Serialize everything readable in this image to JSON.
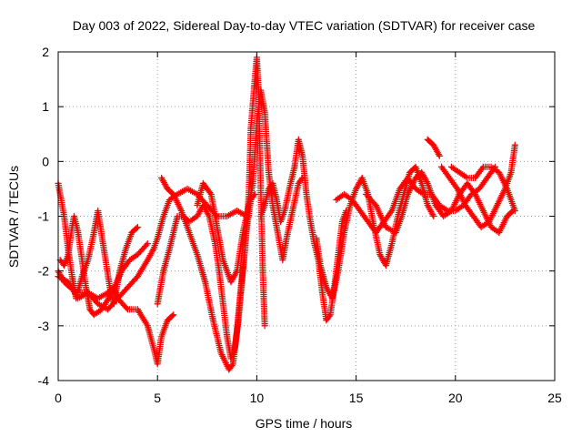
{
  "chart_data": {
    "type": "scatter",
    "title": "Day 003 of 2022, Sidereal Day-to-day VTEC variation (SDTVAR) for receiver case",
    "xlabel": "GPS time / hours",
    "ylabel": "SDTVAR / TECUs",
    "xlim": [
      0,
      25
    ],
    "ylim": [
      -4,
      2
    ],
    "xticks": [
      0,
      5,
      10,
      15,
      20,
      25
    ],
    "yticks": [
      -4,
      -3,
      -2,
      -1,
      0,
      1,
      2
    ],
    "grid": true,
    "marker": "plus",
    "color": "#ff0000",
    "series": [
      {
        "points": [
          [
            0.0,
            -0.4
          ],
          [
            0.3,
            -1.0
          ],
          [
            0.5,
            -1.6
          ],
          [
            0.7,
            -2.1
          ],
          [
            0.9,
            -2.5
          ],
          [
            1.2,
            -2.1
          ],
          [
            1.5,
            -1.8
          ],
          [
            1.8,
            -1.3
          ],
          [
            2.0,
            -0.9
          ],
          [
            2.3,
            -1.6
          ],
          [
            2.6,
            -2.3
          ],
          [
            2.8,
            -2.6
          ],
          [
            3.1,
            -2.0
          ],
          [
            3.4,
            -1.6
          ],
          [
            3.7,
            -1.3
          ],
          [
            4.0,
            -1.2
          ]
        ]
      },
      {
        "points": [
          [
            0.1,
            -1.8
          ],
          [
            0.3,
            -1.9
          ],
          [
            0.5,
            -1.7
          ],
          [
            0.7,
            -1.2
          ],
          [
            0.8,
            -1.0
          ],
          [
            1.0,
            -1.3
          ],
          [
            1.2,
            -1.8
          ],
          [
            1.4,
            -2.3
          ],
          [
            1.6,
            -2.7
          ],
          [
            1.8,
            -2.8
          ],
          [
            2.2,
            -2.7
          ],
          [
            2.7,
            -2.4
          ],
          [
            3.2,
            -2.0
          ],
          [
            3.6,
            -1.8
          ],
          [
            4.0,
            -1.7
          ],
          [
            4.5,
            -1.5
          ]
        ]
      },
      {
        "points": [
          [
            0.0,
            -2.0
          ],
          [
            0.3,
            -2.2
          ],
          [
            0.6,
            -2.3
          ],
          [
            1.0,
            -2.4
          ],
          [
            1.5,
            -2.4
          ],
          [
            2.0,
            -2.5
          ],
          [
            2.5,
            -2.4
          ],
          [
            2.8,
            -2.3
          ],
          [
            3.0,
            -2.5
          ],
          [
            3.5,
            -2.7
          ],
          [
            4.0,
            -2.7
          ],
          [
            4.5,
            -3.0
          ],
          [
            4.8,
            -3.4
          ],
          [
            5.0,
            -3.7
          ],
          [
            5.2,
            -3.2
          ],
          [
            5.5,
            -2.9
          ],
          [
            5.8,
            -2.8
          ]
        ]
      },
      {
        "points": [
          [
            0.0,
            -2.1
          ],
          [
            0.5,
            -2.2
          ],
          [
            1.0,
            -2.5
          ],
          [
            1.5,
            -2.4
          ],
          [
            2.0,
            -2.6
          ],
          [
            2.5,
            -2.7
          ],
          [
            3.0,
            -2.5
          ],
          [
            3.5,
            -2.3
          ],
          [
            4.0,
            -2.1
          ],
          [
            4.5,
            -1.8
          ],
          [
            4.8,
            -1.6
          ],
          [
            5.0,
            -1.4
          ],
          [
            5.3,
            -1.0
          ],
          [
            5.6,
            -0.7
          ],
          [
            6.0,
            -0.6
          ],
          [
            6.5,
            -0.5
          ],
          [
            7.0,
            -0.6
          ],
          [
            7.5,
            -0.8
          ],
          [
            8.0,
            -1.0
          ],
          [
            8.5,
            -1.0
          ],
          [
            9.0,
            -0.9
          ],
          [
            9.5,
            -1.0
          ]
        ]
      },
      {
        "points": [
          [
            5.0,
            -2.6
          ],
          [
            5.3,
            -2.0
          ],
          [
            5.6,
            -1.6
          ],
          [
            5.8,
            -1.3
          ],
          [
            6.0,
            -1.0
          ],
          [
            6.3,
            -1.0
          ],
          [
            6.6,
            -1.1
          ],
          [
            7.0,
            -1.0
          ],
          [
            7.3,
            -0.8
          ],
          [
            7.6,
            -1.0
          ],
          [
            7.9,
            -1.5
          ],
          [
            8.1,
            -2.0
          ],
          [
            8.3,
            -2.6
          ],
          [
            8.5,
            -3.2
          ],
          [
            8.7,
            -3.6
          ],
          [
            8.9,
            -3.4
          ],
          [
            9.1,
            -2.8
          ],
          [
            9.3,
            -2.0
          ],
          [
            9.5,
            -1.2
          ],
          [
            9.7,
            -0.7
          ],
          [
            9.9,
            -0.6
          ]
        ]
      },
      {
        "points": [
          [
            5.2,
            -0.3
          ],
          [
            5.5,
            -0.5
          ],
          [
            5.8,
            -0.6
          ],
          [
            6.2,
            -0.9
          ],
          [
            6.6,
            -1.3
          ],
          [
            7.0,
            -1.7
          ],
          [
            7.4,
            -2.2
          ],
          [
            7.8,
            -2.9
          ],
          [
            8.2,
            -3.5
          ],
          [
            8.6,
            -3.8
          ],
          [
            8.8,
            -3.7
          ],
          [
            9.0,
            -3.1
          ],
          [
            9.2,
            -2.3
          ],
          [
            9.4,
            -1.6
          ],
          [
            9.6,
            -0.6
          ],
          [
            9.7,
            0.6
          ],
          [
            9.9,
            1.5
          ],
          [
            10.0,
            1.9
          ],
          [
            10.1,
            1.2
          ],
          [
            10.2,
            -0.5
          ],
          [
            10.3,
            -2.0
          ],
          [
            10.4,
            -3.0
          ]
        ]
      },
      {
        "points": [
          [
            7.0,
            -0.8
          ],
          [
            7.3,
            -0.4
          ],
          [
            7.7,
            -0.6
          ],
          [
            8.0,
            -1.2
          ],
          [
            8.3,
            -1.8
          ],
          [
            8.7,
            -2.2
          ],
          [
            9.0,
            -2.0
          ],
          [
            9.3,
            -1.3
          ],
          [
            9.6,
            -0.8
          ],
          [
            9.8,
            -0.4
          ],
          [
            10.0,
            0.7
          ],
          [
            10.2,
            1.3
          ],
          [
            10.4,
            0.9
          ],
          [
            10.6,
            -0.2
          ],
          [
            10.8,
            -0.8
          ],
          [
            11.0,
            -1.2
          ],
          [
            11.3,
            -1.8
          ],
          [
            11.5,
            -1.4
          ],
          [
            11.8,
            -0.9
          ],
          [
            12.1,
            -0.4
          ],
          [
            12.3,
            -0.3
          ]
        ]
      },
      {
        "points": [
          [
            10.2,
            -1.0
          ],
          [
            10.4,
            -0.8
          ],
          [
            10.6,
            -0.5
          ],
          [
            10.8,
            -0.4
          ],
          [
            11.0,
            -0.7
          ],
          [
            11.2,
            -1.1
          ],
          [
            11.4,
            -0.9
          ],
          [
            11.7,
            -0.4
          ],
          [
            11.9,
            -0.1
          ],
          [
            12.1,
            0.4
          ],
          [
            12.3,
            0.1
          ],
          [
            12.5,
            -0.6
          ],
          [
            12.7,
            -1.1
          ],
          [
            12.9,
            -1.5
          ],
          [
            13.1,
            -1.8
          ],
          [
            13.3,
            -2.4
          ],
          [
            13.5,
            -2.9
          ],
          [
            13.7,
            -2.8
          ],
          [
            13.9,
            -2.3
          ],
          [
            14.1,
            -1.7
          ],
          [
            14.3,
            -1.1
          ],
          [
            14.5,
            -0.9
          ]
        ]
      },
      {
        "points": [
          [
            13.0,
            -1.4
          ],
          [
            13.2,
            -1.9
          ],
          [
            13.5,
            -2.3
          ],
          [
            13.8,
            -2.5
          ],
          [
            14.1,
            -2.0
          ],
          [
            14.4,
            -1.3
          ],
          [
            14.7,
            -0.8
          ],
          [
            15.0,
            -0.5
          ],
          [
            15.3,
            -0.3
          ],
          [
            15.6,
            -0.6
          ],
          [
            15.9,
            -1.2
          ],
          [
            16.2,
            -1.7
          ],
          [
            16.5,
            -1.9
          ],
          [
            16.8,
            -1.5
          ],
          [
            17.1,
            -1.0
          ],
          [
            17.4,
            -0.6
          ],
          [
            17.7,
            -0.2
          ],
          [
            18.0,
            -0.1
          ],
          [
            18.3,
            -0.4
          ],
          [
            18.6,
            -0.8
          ],
          [
            18.9,
            -1.0
          ]
        ]
      },
      {
        "points": [
          [
            14.0,
            -0.7
          ],
          [
            14.4,
            -0.6
          ],
          [
            14.8,
            -0.7
          ],
          [
            15.2,
            -0.9
          ],
          [
            15.6,
            -1.1
          ],
          [
            16.0,
            -1.3
          ],
          [
            16.4,
            -1.1
          ],
          [
            16.8,
            -0.9
          ],
          [
            17.2,
            -0.5
          ],
          [
            17.6,
            -0.3
          ],
          [
            18.0,
            -0.5
          ],
          [
            18.4,
            -0.6
          ],
          [
            18.8,
            -0.6
          ],
          [
            19.2,
            -0.8
          ],
          [
            19.6,
            -0.9
          ],
          [
            20.0,
            -0.9
          ],
          [
            20.4,
            -0.8
          ],
          [
            20.8,
            -0.6
          ],
          [
            21.2,
            -0.5
          ],
          [
            21.6,
            -0.3
          ],
          [
            22.0,
            -0.1
          ]
        ]
      },
      {
        "points": [
          [
            15.5,
            -0.6
          ],
          [
            16.0,
            -0.8
          ],
          [
            16.5,
            -1.2
          ],
          [
            17.0,
            -1.3
          ],
          [
            17.3,
            -1.0
          ],
          [
            17.6,
            -0.6
          ],
          [
            18.0,
            -0.3
          ],
          [
            18.3,
            -0.2
          ],
          [
            18.6,
            -0.4
          ],
          [
            19.0,
            -0.8
          ],
          [
            19.4,
            -1.0
          ],
          [
            19.8,
            -0.9
          ],
          [
            20.2,
            -0.6
          ],
          [
            20.6,
            -0.4
          ],
          [
            21.0,
            -0.6
          ],
          [
            21.4,
            -0.9
          ],
          [
            21.8,
            -1.2
          ],
          [
            22.2,
            -1.3
          ],
          [
            22.6,
            -1.0
          ],
          [
            22.9,
            -0.9
          ]
        ]
      },
      {
        "points": [
          [
            18.6,
            0.4
          ],
          [
            18.9,
            0.3
          ],
          [
            19.2,
            0.1
          ]
        ]
      },
      {
        "points": [
          [
            19.3,
            -0.1
          ],
          [
            19.7,
            -0.3
          ],
          [
            20.1,
            -0.5
          ],
          [
            20.5,
            -0.8
          ],
          [
            20.9,
            -1.0
          ],
          [
            21.3,
            -1.2
          ],
          [
            21.7,
            -1.1
          ],
          [
            22.1,
            -0.8
          ],
          [
            22.5,
            -0.5
          ],
          [
            22.8,
            -0.2
          ],
          [
            23.0,
            0.3
          ]
        ]
      },
      {
        "points": [
          [
            19.8,
            -0.1
          ],
          [
            20.2,
            -0.2
          ],
          [
            20.6,
            -0.3
          ],
          [
            21.0,
            -0.3
          ],
          [
            21.4,
            -0.1
          ],
          [
            21.8,
            -0.1
          ],
          [
            22.2,
            -0.2
          ],
          [
            22.6,
            -0.5
          ],
          [
            22.9,
            -0.8
          ],
          [
            23.0,
            -0.9
          ]
        ]
      }
    ]
  }
}
